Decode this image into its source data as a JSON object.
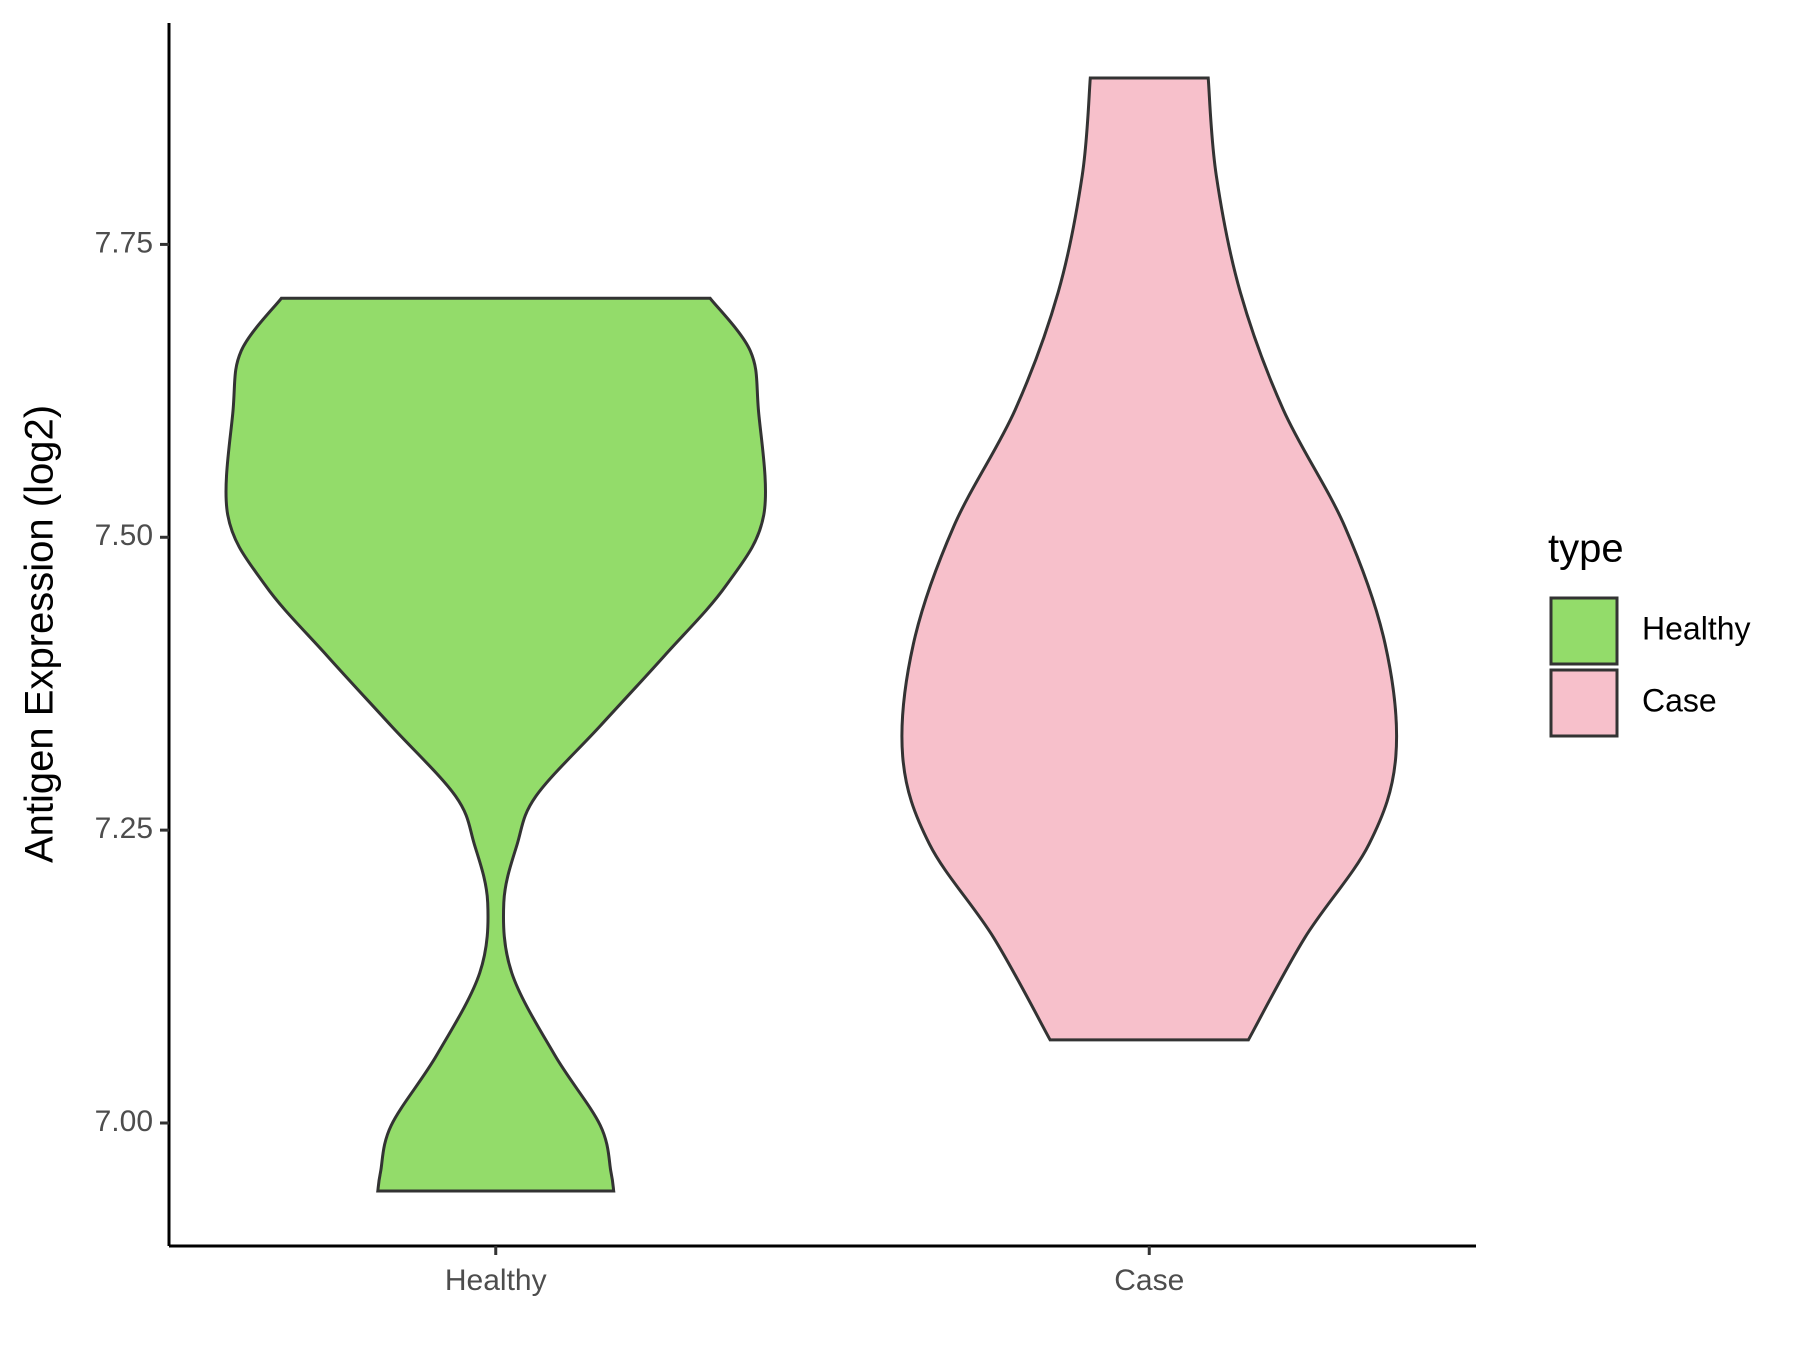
{
  "chart_data": {
    "type": "violin",
    "y_label": "Antigen Expression (log2)",
    "categories": [
      "Healthy",
      "Case"
    ],
    "ylim": [
      6.895,
      7.939
    ],
    "yticks": [
      {
        "value": 7,
        "label": "7.00"
      },
      {
        "value": 7.25,
        "label": "7.25"
      },
      {
        "value": 7.5,
        "label": "7.50"
      },
      {
        "value": 7.75,
        "label": "7.75"
      }
    ],
    "legend_title": "type",
    "legend_position": "right",
    "series": [
      {
        "name": "Healthy",
        "color": "#93dc6a",
        "y": [
          7.704,
          7.659,
          7.609,
          7.519,
          7.459,
          7.399,
          7.339,
          7.279,
          7.238,
          7.188,
          7.128,
          7.058,
          6.998,
          6.958,
          6.942
        ],
        "width": [
          0.8,
          0.95,
          0.98,
          1.0,
          0.86,
          0.63,
          0.39,
          0.15,
          0.08,
          0.03,
          0.06,
          0.22,
          0.39,
          0.43,
          0.44
        ]
      },
      {
        "name": "Case",
        "color": "#f7c0cb",
        "y": [
          7.892,
          7.809,
          7.709,
          7.609,
          7.509,
          7.409,
          7.313,
          7.238,
          7.158,
          7.071
        ],
        "width": [
          0.22,
          0.25,
          0.34,
          0.5,
          0.73,
          0.88,
          0.92,
          0.82,
          0.58,
          0.37
        ]
      }
    ]
  }
}
